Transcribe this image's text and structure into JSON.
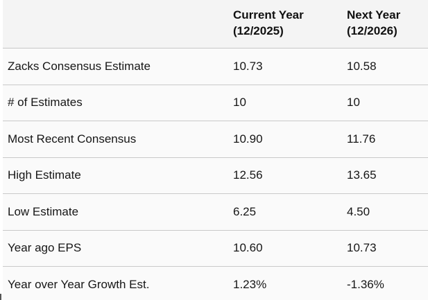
{
  "table": {
    "header": {
      "col1": {
        "line1": "Current Year",
        "line2": "(12/2025)"
      },
      "col2": {
        "line1": "Next Year",
        "line2": "(12/2026)"
      }
    },
    "rows": [
      {
        "label": "Zacks Consensus Estimate",
        "current": "10.73",
        "next": "10.58"
      },
      {
        "label": "# of Estimates",
        "current": "10",
        "next": "10"
      },
      {
        "label": "Most Recent Consensus",
        "current": "10.90",
        "next": "11.76"
      },
      {
        "label": "High Estimate",
        "current": "12.56",
        "next": "13.65"
      },
      {
        "label": "Low Estimate",
        "current": "6.25",
        "next": "4.50"
      },
      {
        "label": "Year ago EPS",
        "current": "10.60",
        "next": "10.73"
      },
      {
        "label": "Year over Year Growth Est.",
        "current": "1.23%",
        "next": "-1.36%"
      }
    ],
    "colors": {
      "header_bg": "#f4f4f4",
      "row_bg": "#fafafa",
      "divider": "#c9c9c9",
      "header_divider": "#c6c6c6",
      "text": "#161616"
    }
  },
  "chart_data": {
    "type": "table",
    "columns": [
      "",
      "Current Year (12/2025)",
      "Next Year (12/2026)"
    ],
    "rows": [
      [
        "Zacks Consensus Estimate",
        "10.73",
        "10.58"
      ],
      [
        "# of Estimates",
        "10",
        "10"
      ],
      [
        "Most Recent Consensus",
        "10.90",
        "11.76"
      ],
      [
        "High Estimate",
        "12.56",
        "13.65"
      ],
      [
        "Low Estimate",
        "6.25",
        "4.50"
      ],
      [
        "Year ago EPS",
        "10.60",
        "10.73"
      ],
      [
        "Year over Year Growth Est.",
        "1.23%",
        "-1.36%"
      ]
    ]
  }
}
